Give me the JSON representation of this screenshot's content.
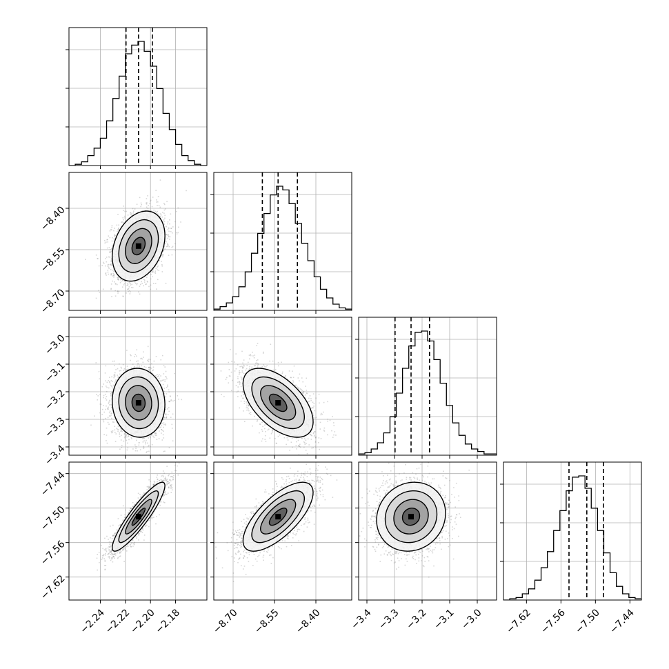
{
  "chart_data": {
    "type": "corner",
    "parameters": [
      {
        "lim": [
          -2.265,
          -2.155
        ],
        "ticks": [
          -2.24,
          -2.22,
          -2.2,
          -2.18
        ],
        "tick_labels": [
          "−2.24",
          "−2.22",
          "−2.20",
          "−2.18"
        ],
        "quantiles": [
          -2.2195,
          -2.2095,
          -2.1985
        ],
        "hist": [
          0,
          0.01,
          0.03,
          0.08,
          0.14,
          0.22,
          0.36,
          0.54,
          0.72,
          0.9,
          0.97,
          1.0,
          0.92,
          0.8,
          0.62,
          0.42,
          0.29,
          0.17,
          0.08,
          0.04,
          0.01,
          0
        ]
      },
      {
        "lim": [
          -8.77,
          -8.27
        ],
        "ticks": [
          -8.7,
          -8.55,
          -8.4
        ],
        "tick_labels": [
          "−8.70",
          "−8.55",
          "−8.40"
        ],
        "quantiles": [
          -8.594,
          -8.537,
          -8.467
        ],
        "hist": [
          0.01,
          0.03,
          0.06,
          0.11,
          0.19,
          0.31,
          0.46,
          0.62,
          0.78,
          0.93,
          1.0,
          0.97,
          0.86,
          0.7,
          0.54,
          0.4,
          0.27,
          0.17,
          0.1,
          0.05,
          0.02,
          0.01
        ]
      },
      {
        "lim": [
          -3.43,
          -2.93
        ],
        "ticks": [
          -3.4,
          -3.3,
          -3.2,
          -3.1,
          -3.0
        ],
        "tick_labels": [
          "−3.4",
          "−3.3",
          "−3.2",
          "−3.1",
          "−3.0"
        ],
        "quantiles": [
          -3.298,
          -3.24,
          -3.173
        ],
        "hist": [
          0.01,
          0.02,
          0.05,
          0.1,
          0.18,
          0.31,
          0.5,
          0.7,
          0.88,
          0.99,
          1.0,
          0.92,
          0.77,
          0.58,
          0.4,
          0.26,
          0.16,
          0.09,
          0.05,
          0.03,
          0.01,
          0.01
        ]
      },
      {
        "lim": [
          -7.66,
          -7.42
        ],
        "ticks": [
          -7.62,
          -7.56,
          -7.5,
          -7.44
        ],
        "tick_labels": [
          "−7.62",
          "−7.56",
          "−7.50",
          "−7.44"
        ],
        "quantiles": [
          -7.546,
          -7.515,
          -7.486
        ],
        "hist": [
          0,
          0.01,
          0.02,
          0.05,
          0.09,
          0.16,
          0.26,
          0.39,
          0.56,
          0.72,
          0.88,
          0.99,
          1.0,
          0.9,
          0.74,
          0.56,
          0.38,
          0.22,
          0.11,
          0.05,
          0.02,
          0.01
        ]
      }
    ],
    "correlations": [
      [
        1.0,
        0.3,
        -0.05,
        0.9
      ],
      [
        0.3,
        1.0,
        -0.55,
        0.7
      ],
      [
        -0.05,
        -0.55,
        1.0,
        0.1
      ],
      [
        0.9,
        0.7,
        0.1,
        1.0
      ]
    ],
    "contour_levels_sigma": [
      0.5,
      1.0,
      1.5,
      2.0
    ],
    "grid": true,
    "colors": {
      "points": "#8a8a8a",
      "contour": "#000000",
      "grid": "#b0b0b0"
    }
  }
}
